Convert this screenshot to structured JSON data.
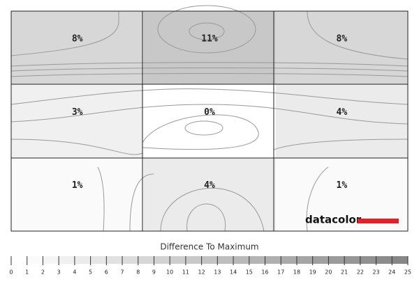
{
  "chart_data": {
    "type": "heatmap",
    "values": [
      [
        8,
        11,
        8
      ],
      [
        3,
        0,
        4
      ],
      [
        1,
        4,
        1
      ]
    ],
    "value_labels": [
      [
        "8%",
        "11%",
        "8%"
      ],
      [
        "3%",
        "0%",
        "4%"
      ],
      [
        "1%",
        "4%",
        "1%"
      ]
    ],
    "logo": "datacolor",
    "colorbar": {
      "title": "Difference To Maximum",
      "lim": [
        0,
        25
      ],
      "ticks": [
        0,
        1,
        2,
        3,
        4,
        5,
        6,
        7,
        8,
        9,
        10,
        11,
        12,
        13,
        14,
        15,
        16,
        17,
        18,
        19,
        20,
        21,
        22,
        23,
        24,
        25
      ]
    }
  }
}
